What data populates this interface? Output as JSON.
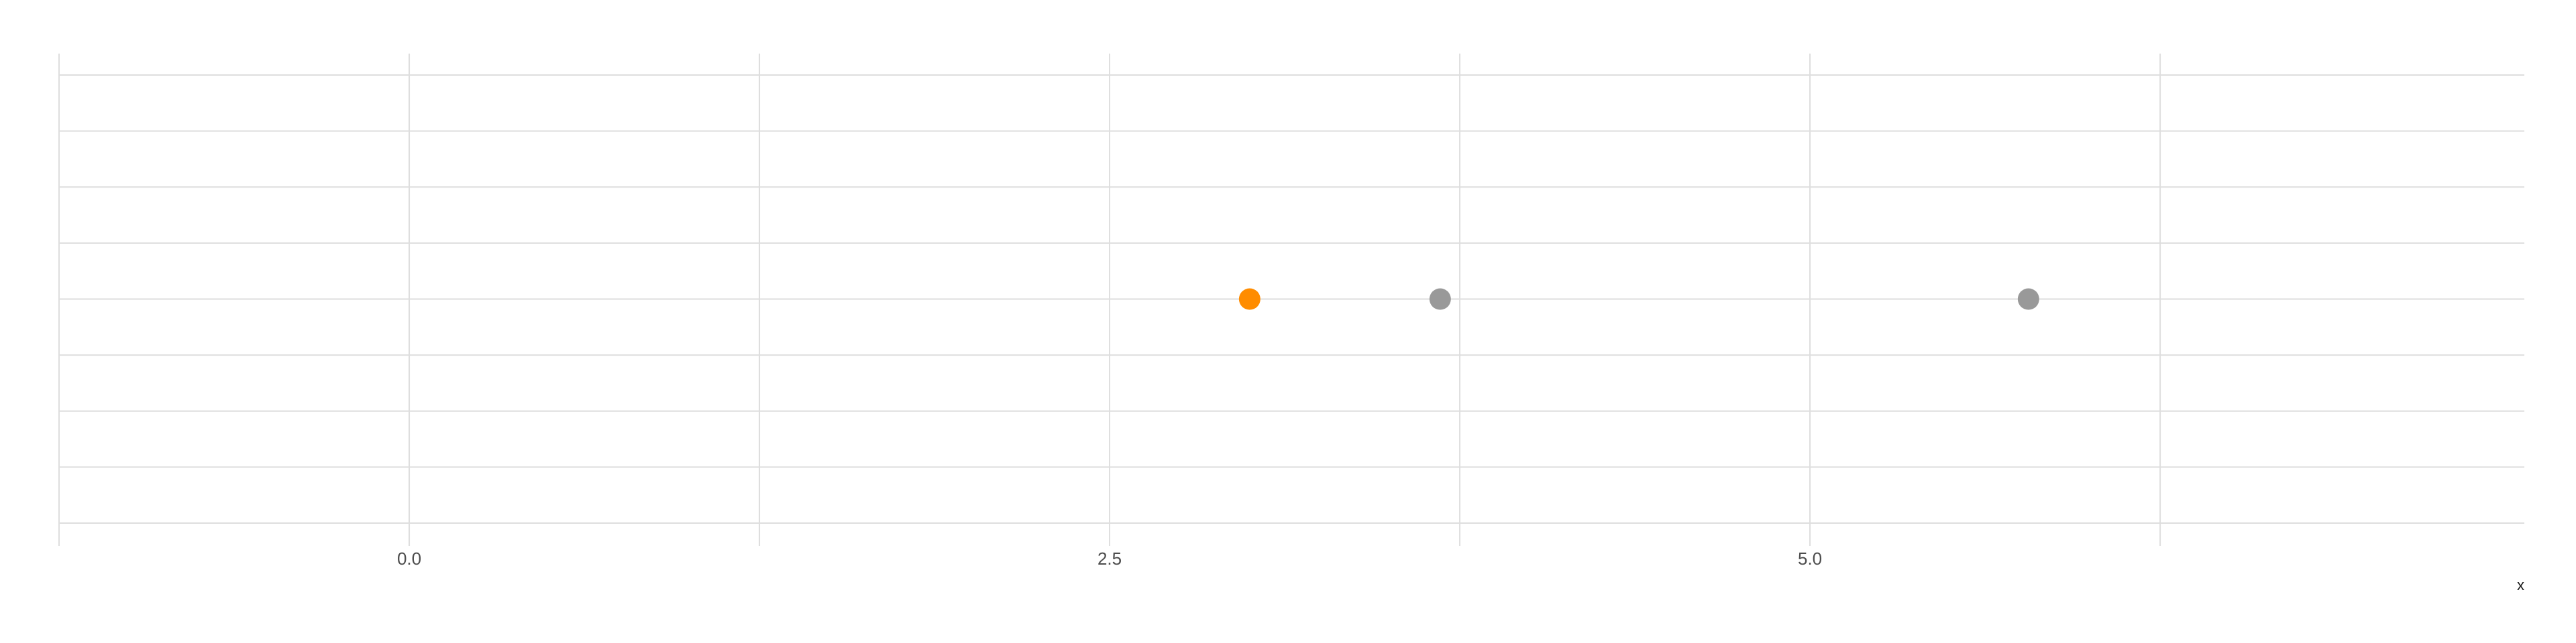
{
  "chart_data": {
    "type": "scatter",
    "title": "",
    "xlabel": "x",
    "ylabel": "",
    "xlim": [
      -1.25,
      7.55
    ],
    "x_ticks": [
      0.0,
      2.5,
      5.0
    ],
    "x_tick_labels": [
      "0.0",
      "2.5",
      "5.0"
    ],
    "x_minor_gridlines": [
      -1.25,
      1.25,
      3.75,
      6.25
    ],
    "y_gridline_count": 9,
    "grid": true,
    "legend": "none",
    "colors": {
      "highlight": "#ff8c00",
      "default": "#999999",
      "grid": "#dedede"
    },
    "points": [
      {
        "x": 3.0,
        "y": 0,
        "color": "#ff8c00"
      },
      {
        "x": 3.68,
        "y": 0,
        "color": "#999999"
      },
      {
        "x": 5.78,
        "y": 0,
        "color": "#999999"
      }
    ]
  }
}
